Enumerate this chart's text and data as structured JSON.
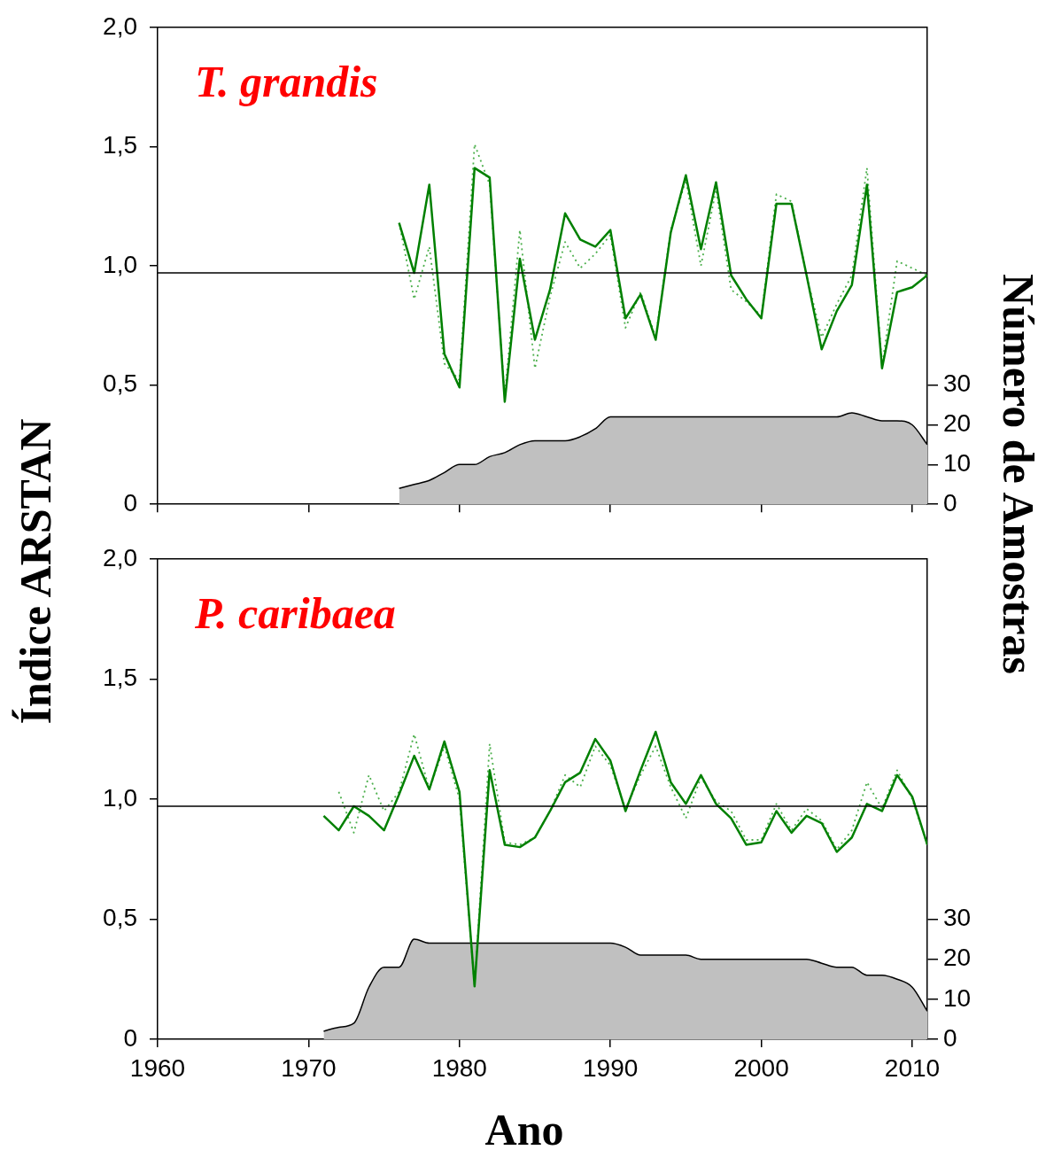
{
  "chart_data": [
    {
      "type": "line",
      "title": "T. grandis",
      "ylabel": "Índice ARSTAN",
      "y2label": "Número de Amostras",
      "marker": "none",
      "tick_labels": "y",
      "xlim": [
        1960,
        2011
      ],
      "xticks": [
        1960,
        1970,
        1980,
        1990,
        2000,
        2010
      ],
      "ylim": [
        0,
        2
      ],
      "yticks": [
        {
          "value": 0,
          "label": "0"
        },
        {
          "value": 0.5,
          "label": "0,5"
        },
        {
          "value": 1,
          "label": "1,0"
        },
        {
          "value": 1.5,
          "label": "1,5"
        },
        {
          "value": 2,
          "label": "2,0"
        }
      ],
      "y2lim": [
        0,
        120
      ],
      "y2ticks": [
        0,
        10,
        20,
        30
      ],
      "ref_lines": [
        {
          "axis": "y",
          "value": 0.97,
          "color": "#000000"
        }
      ],
      "series": [
        {
          "type": "area",
          "axis": "y2",
          "color": "#c0c0c0",
          "x": [
            1976,
            1977,
            1978,
            1979,
            1980,
            1981,
            1982,
            1983,
            1984,
            1985,
            1986,
            1987,
            1988,
            1989,
            1990,
            1991,
            1992,
            1993,
            1994,
            1995,
            1996,
            1997,
            1998,
            1999,
            2000,
            2001,
            2002,
            2003,
            2004,
            2005,
            2006,
            2007,
            2008,
            2009,
            2010,
            2011
          ],
          "values": [
            4,
            5,
            6,
            8,
            10,
            10,
            12,
            13,
            15,
            16,
            16,
            16,
            17,
            19,
            22,
            22,
            22,
            22,
            22,
            22,
            22,
            22,
            22,
            22,
            22,
            22,
            22,
            22,
            22,
            22,
            23,
            22,
            21,
            21,
            20,
            15
          ]
        },
        {
          "color": "#4caf4c",
          "line_style": "dotted",
          "x": [
            1976,
            1977,
            1978,
            1979,
            1980,
            1981,
            1982,
            1983,
            1984,
            1985,
            1986,
            1987,
            1988,
            1989,
            1990,
            1991,
            1992,
            1993,
            1994,
            1995,
            1996,
            1997,
            1998,
            1999,
            2000,
            2001,
            2002,
            2003,
            2004,
            2005,
            2006,
            2007,
            2008,
            2009,
            2010,
            2011
          ],
          "values": [
            1.18,
            0.86,
            1.08,
            0.59,
            0.52,
            1.51,
            1.34,
            0.45,
            1.15,
            0.57,
            0.87,
            1.1,
            0.99,
            1.05,
            1.13,
            0.74,
            0.89,
            0.7,
            1.15,
            1.36,
            1.0,
            1.32,
            0.9,
            0.85,
            0.79,
            1.3,
            1.27,
            0.96,
            0.7,
            0.84,
            0.96,
            1.41,
            0.58,
            1.02,
            0.99,
            0.96
          ]
        },
        {
          "color": "#008000",
          "line_style": "solid",
          "x": [
            1976,
            1977,
            1978,
            1979,
            1980,
            1981,
            1982,
            1983,
            1984,
            1985,
            1986,
            1987,
            1988,
            1989,
            1990,
            1991,
            1992,
            1993,
            1994,
            1995,
            1996,
            1997,
            1998,
            1999,
            2000,
            2001,
            2002,
            2003,
            2004,
            2005,
            2006,
            2007,
            2008,
            2009,
            2010,
            2011
          ],
          "values": [
            1.18,
            0.97,
            1.34,
            0.63,
            0.49,
            1.41,
            1.37,
            0.43,
            1.03,
            0.69,
            0.9,
            1.22,
            1.11,
            1.08,
            1.15,
            0.78,
            0.88,
            0.69,
            1.14,
            1.38,
            1.07,
            1.35,
            0.96,
            0.86,
            0.78,
            1.26,
            1.26,
            0.96,
            0.65,
            0.81,
            0.92,
            1.34,
            0.57,
            0.89,
            0.91,
            0.96
          ]
        }
      ]
    },
    {
      "type": "line",
      "title": "P. caribaea",
      "xlabel": "Ano",
      "marker": "none",
      "xlim": [
        1960,
        2011
      ],
      "xticks": [
        1960,
        1970,
        1980,
        1990,
        2000,
        2010
      ],
      "ylim": [
        0,
        2
      ],
      "yticks": [
        {
          "value": 0,
          "label": "0"
        },
        {
          "value": 0.5,
          "label": "0,5"
        },
        {
          "value": 1,
          "label": "1,0"
        },
        {
          "value": 1.5,
          "label": "1,5"
        },
        {
          "value": 2,
          "label": "2,0"
        }
      ],
      "y2lim": [
        0,
        120
      ],
      "y2ticks": [
        0,
        10,
        20,
        30
      ],
      "ref_lines": [
        {
          "axis": "y",
          "value": 0.97,
          "color": "#000000"
        }
      ],
      "series": [
        {
          "type": "area",
          "axis": "y2",
          "color": "#c0c0c0",
          "x": [
            1971,
            1972,
            1973,
            1974,
            1975,
            1976,
            1977,
            1978,
            1979,
            1980,
            1981,
            1982,
            1983,
            1984,
            1985,
            1986,
            1987,
            1988,
            1989,
            1990,
            1991,
            1992,
            1993,
            1994,
            1995,
            1996,
            1997,
            1998,
            1999,
            2000,
            2001,
            2002,
            2003,
            2004,
            2005,
            2006,
            2007,
            2008,
            2009,
            2010,
            2011
          ],
          "values": [
            2,
            3,
            4,
            13,
            18,
            18,
            25,
            24,
            24,
            24,
            24,
            24,
            24,
            24,
            24,
            24,
            24,
            24,
            24,
            24,
            23,
            21,
            21,
            21,
            21,
            20,
            20,
            20,
            20,
            20,
            20,
            20,
            20,
            19,
            18,
            18,
            16,
            16,
            15,
            13,
            7
          ]
        },
        {
          "color": "#4caf4c",
          "line_style": "dotted",
          "x": [
            1972,
            1973,
            1974,
            1975,
            1976,
            1977,
            1978,
            1979,
            1980,
            1981,
            1982,
            1983,
            1984,
            1985,
            1986,
            1987,
            1988,
            1989,
            1990,
            1991,
            1992,
            1993,
            1994,
            1995,
            1996,
            1997,
            1998,
            1999,
            2000,
            2001,
            2002,
            2003,
            2004,
            2005,
            2006,
            2007,
            2008,
            2009,
            2010,
            2011
          ],
          "values": [
            1.03,
            0.86,
            1.1,
            0.95,
            1.03,
            1.27,
            1.04,
            1.22,
            1.0,
            0.22,
            1.23,
            0.82,
            0.81,
            0.84,
            0.95,
            1.1,
            1.05,
            1.22,
            1.14,
            0.96,
            1.1,
            1.22,
            1.05,
            0.92,
            1.09,
            0.99,
            0.95,
            0.83,
            0.83,
            0.98,
            0.87,
            0.96,
            0.91,
            0.79,
            0.87,
            1.07,
            0.96,
            1.12,
            1.0,
            0.81
          ]
        },
        {
          "color": "#008000",
          "line_style": "solid",
          "x": [
            1971,
            1972,
            1973,
            1974,
            1975,
            1976,
            1977,
            1978,
            1979,
            1980,
            1981,
            1982,
            1983,
            1984,
            1985,
            1986,
            1987,
            1988,
            1989,
            1990,
            1991,
            1992,
            1993,
            1994,
            1995,
            1996,
            1997,
            1998,
            1999,
            2000,
            2001,
            2002,
            2003,
            2004,
            2005,
            2006,
            2007,
            2008,
            2009,
            2010,
            2011
          ],
          "values": [
            0.93,
            0.87,
            0.97,
            0.93,
            0.87,
            1.02,
            1.18,
            1.04,
            1.24,
            1.03,
            0.22,
            1.12,
            0.81,
            0.8,
            0.84,
            0.95,
            1.07,
            1.11,
            1.25,
            1.16,
            0.95,
            1.12,
            1.28,
            1.07,
            0.98,
            1.1,
            0.98,
            0.92,
            0.81,
            0.82,
            0.95,
            0.86,
            0.93,
            0.9,
            0.78,
            0.84,
            0.98,
            0.95,
            1.1,
            1.01,
            0.81
          ]
        }
      ]
    }
  ]
}
